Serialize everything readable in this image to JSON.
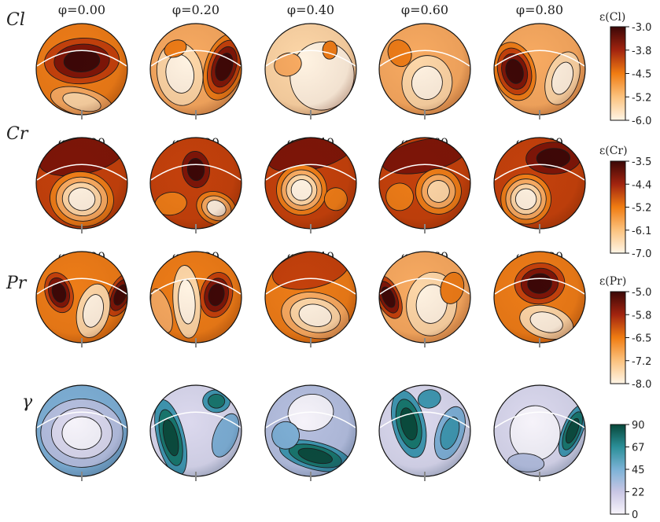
{
  "phase_labels": [
    "φ=0.00",
    "φ=0.20",
    "φ=0.40",
    "φ=0.60",
    "φ=0.80"
  ],
  "rows": [
    {
      "label": "Cl",
      "colorbar_title": "ε(Cl)",
      "colorbar_ticks": [
        "-3.0",
        "-3.8",
        "-4.5",
        "-5.2",
        "-6.0"
      ],
      "colormap": "orange-dark-red"
    },
    {
      "label": "Cr",
      "colorbar_title": "ε(Cr)",
      "colorbar_ticks": [
        "-3.5",
        "-4.4",
        "-5.2",
        "-6.1",
        "-7.0"
      ],
      "colormap": "orange-dark-red"
    },
    {
      "label": "Pr",
      "colorbar_title": "ε(Pr)",
      "colorbar_ticks": [
        "-5.0",
        "-5.8",
        "-6.5",
        "-7.2",
        "-8.0"
      ],
      "colormap": "orange-dark-red"
    },
    {
      "label": "γ",
      "colorbar_title": "",
      "colorbar_ticks": [
        "90",
        "67",
        "45",
        "22",
        "0"
      ],
      "colormap": "white-blue-green"
    }
  ],
  "colors": {
    "ramp_low": "#fff4e4",
    "ramp_mid": "#f0800e",
    "ramp_high": "#3c0707",
    "gamma_low": "#f6f3fa",
    "gamma_mid": "#6aa5cf",
    "gamma_high": "#0b4e3e"
  }
}
